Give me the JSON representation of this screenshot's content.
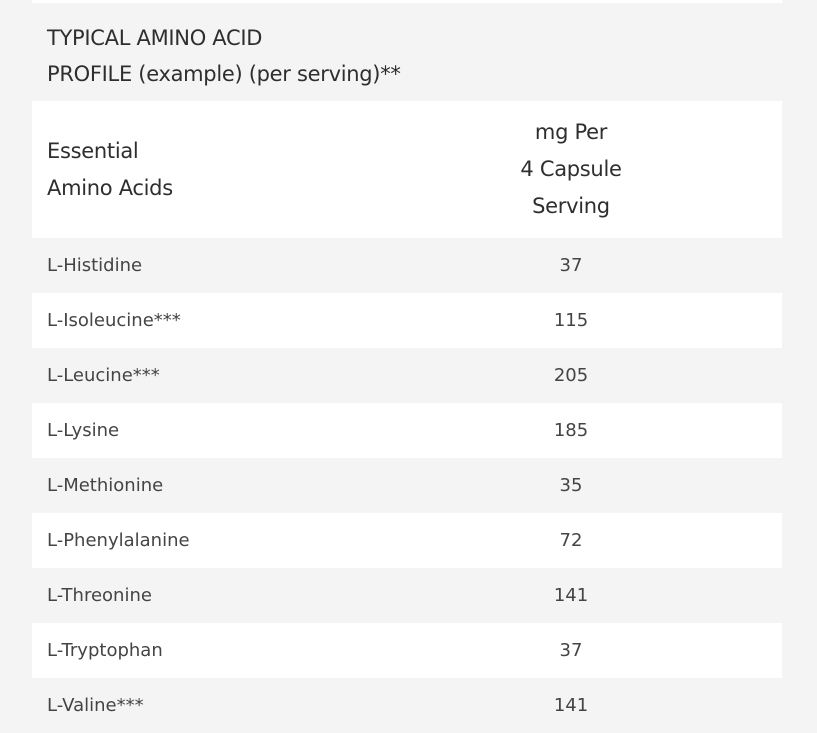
{
  "title_line1": "TYPICAL AMINO ACID",
  "title_line2": "PROFILE (example) (per serving)**",
  "table": {
    "headers": {
      "col1_line1": "Essential",
      "col1_line2": "Amino Acids",
      "col2_line1": "mg Per",
      "col2_line2": "4 Capsule",
      "col2_line3": "Serving"
    },
    "rows": [
      {
        "name": "L-Histidine",
        "mg": "37"
      },
      {
        "name": "L-Isoleucine***",
        "mg": "115"
      },
      {
        "name": "L-Leucine***",
        "mg": "205"
      },
      {
        "name": "L-Lysine",
        "mg": "185"
      },
      {
        "name": "L-Methionine",
        "mg": "35"
      },
      {
        "name": "L-Phenylalanine",
        "mg": "72"
      },
      {
        "name": "L-Threonine",
        "mg": "141"
      },
      {
        "name": "L-Tryptophan",
        "mg": "37"
      },
      {
        "name": "L-Valine***",
        "mg": "141"
      }
    ]
  }
}
